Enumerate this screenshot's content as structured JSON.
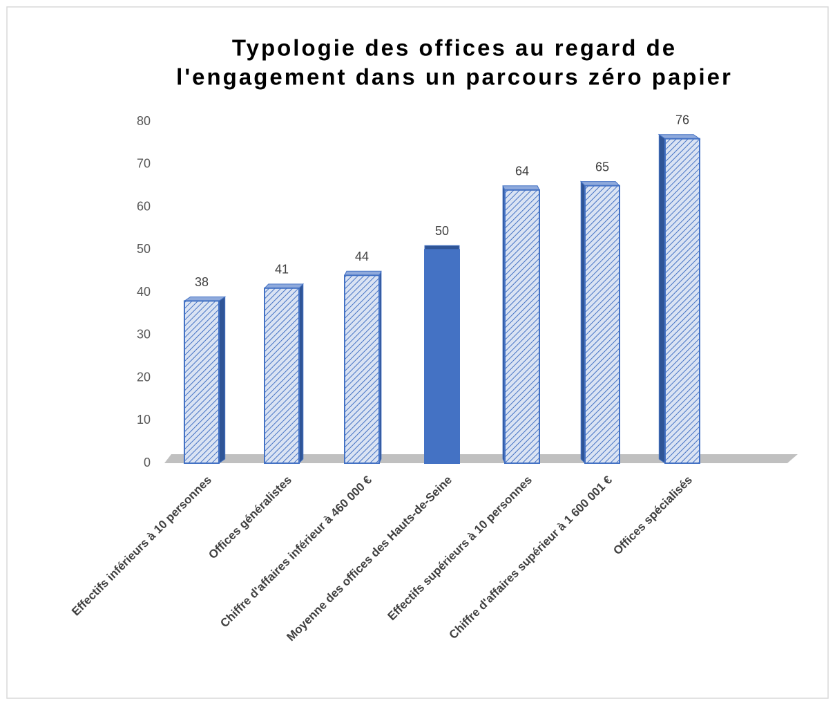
{
  "chart_data": {
    "type": "bar3d",
    "title": [
      "Typologie des offices au regard de",
      "l'engagement dans un parcours zéro papier"
    ],
    "categories": [
      "Effectifs inférieurs à 10 personnes",
      "Offices généralistes",
      "Chiffre d'affaires inférieur à 460 000 €",
      "Moyenne des offices des Hauts-de-Seine",
      "Effectifs supérieurs à 10 personnes",
      "Chiffre d'affaires supérieur à 1 600 001 €",
      "Offices spécialisés"
    ],
    "values": [
      38,
      41,
      44,
      50,
      64,
      65,
      76
    ],
    "color": "#4472c4",
    "fills": [
      "hatched",
      "hatched",
      "hatched",
      "solid",
      "hatched",
      "hatched",
      "hatched"
    ],
    "ylim": [
      0,
      80
    ],
    "yticks": [
      0,
      10,
      20,
      30,
      40,
      50,
      60,
      70,
      80
    ],
    "grid": false
  }
}
